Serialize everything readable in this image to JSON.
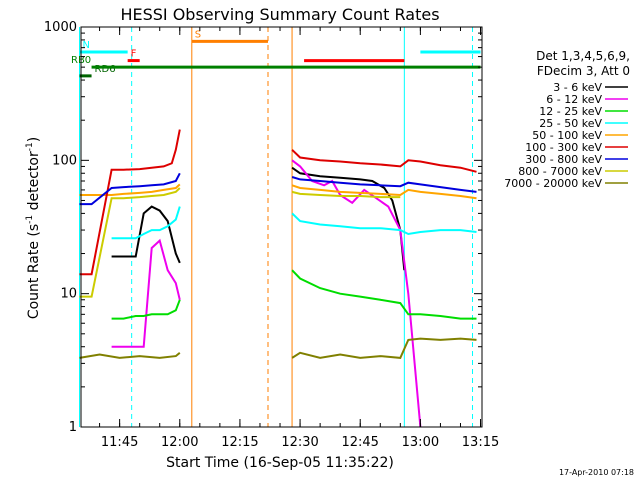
{
  "chart_data": {
    "type": "line",
    "title": "HESSI Observing Summary Count Rates",
    "xlabel": "Start Time (16-Sep-05 11:35:22)",
    "ylabel_main": "Count Rate (s",
    "ylabel_sup1": "-1",
    "ylabel_mid": " detector",
    "ylabel_sup2": "-1",
    "ylabel_end": ")",
    "y_scale": "log",
    "ylim": [
      1,
      1000
    ],
    "xlim": [
      "11:35:22",
      "13:15:22"
    ],
    "x_ticks": [
      "11:45",
      "12:00",
      "12:15",
      "12:30",
      "12:45",
      "13:00",
      "13:15"
    ],
    "y_ticks": [
      "1",
      "10",
      "100",
      "1000"
    ],
    "grid": false,
    "legend_header": [
      "Det 1,3,4,5,6,9,",
      "FDecim 3, Att 0"
    ],
    "legend_placement": "right",
    "series": [
      {
        "name": "3 - 6 keV",
        "color": "#000000",
        "segments": [
          {
            "x": [
              "11:43",
              "11:46",
              "11:49",
              "11:51",
              "11:53",
              "11:55",
              "11:57",
              "11:59",
              "12:00"
            ],
            "y": [
              19,
              19,
              19,
              40,
              45,
              42,
              35,
              20,
              17
            ]
          },
          {
            "x": [
              "12:28",
              "12:30",
              "12:35",
              "12:40",
              "12:45",
              "12:48",
              "12:51",
              "12:53",
              "12:55",
              "12:56"
            ],
            "y": [
              88,
              80,
              76,
              74,
              72,
              70,
              62,
              50,
              30,
              15
            ]
          }
        ]
      },
      {
        "name": "6 - 12 keV",
        "color": "#ee00ee",
        "segments": [
          {
            "x": [
              "11:43",
              "11:48",
              "11:51",
              "11:53",
              "11:55",
              "11:57",
              "11:59",
              "12:00"
            ],
            "y": [
              4,
              4,
              4,
              22,
              25,
              15,
              12,
              9
            ]
          },
          {
            "x": [
              "12:28",
              "12:30",
              "12:33",
              "12:36",
              "12:38",
              "12:40",
              "12:43",
              "12:46",
              "12:49",
              "12:52",
              "12:55",
              "12:57",
              "13:00"
            ],
            "y": [
              100,
              90,
              70,
              65,
              70,
              55,
              48,
              60,
              52,
              45,
              30,
              10,
              1
            ]
          }
        ]
      },
      {
        "name": "12 - 25 keV",
        "color": "#00dd00",
        "segments": [
          {
            "x": [
              "11:43",
              "11:46",
              "11:49",
              "11:51",
              "11:53",
              "11:55",
              "11:57",
              "11:59",
              "12:00"
            ],
            "y": [
              6.5,
              6.5,
              6.8,
              6.8,
              7.0,
              7.0,
              7.0,
              7.5,
              9
            ]
          },
          {
            "x": [
              "12:28",
              "12:30",
              "12:35",
              "12:40",
              "12:45",
              "12:50",
              "12:55",
              "12:57",
              "13:00",
              "13:05",
              "13:10",
              "13:14"
            ],
            "y": [
              15,
              13,
              11,
              10,
              9.5,
              9.0,
              8.5,
              7.0,
              7.0,
              6.8,
              6.5,
              6.5
            ]
          }
        ]
      },
      {
        "name": "25 - 50 keV",
        "color": "#00ffff",
        "segments": [
          {
            "x": [
              "11:43",
              "11:46",
              "11:49",
              "11:51",
              "11:53",
              "11:55",
              "11:57",
              "11:59",
              "12:00"
            ],
            "y": [
              26,
              26,
              26,
              28,
              30,
              30,
              32,
              36,
              45
            ]
          },
          {
            "x": [
              "12:28",
              "12:30",
              "12:35",
              "12:40",
              "12:45",
              "12:50",
              "12:55",
              "12:57",
              "13:00",
              "13:05",
              "13:10",
              "13:14"
            ],
            "y": [
              40,
              35,
              33,
              32,
              31,
              31,
              30,
              28,
              29,
              30,
              30,
              29
            ]
          }
        ]
      },
      {
        "name": "50 - 100 keV",
        "color": "#ffa500",
        "segments": [
          {
            "x": [
              "11:35",
              "11:43",
              "11:46",
              "11:50",
              "11:53",
              "11:56",
              "11:59",
              "12:00"
            ],
            "y": [
              55,
              55,
              56,
              57,
              58,
              60,
              62,
              66
            ]
          },
          {
            "x": [
              "12:28",
              "12:30",
              "12:35",
              "12:40",
              "12:45",
              "12:50",
              "12:55",
              "12:57",
              "13:00",
              "13:05",
              "13:10",
              "13:14"
            ],
            "y": [
              65,
              62,
              60,
              58,
              57,
              56,
              55,
              60,
              58,
              56,
              54,
              52
            ]
          }
        ]
      },
      {
        "name": "100 - 300 keV",
        "color": "#dd0000",
        "segments": [
          {
            "x": [
              "11:35",
              "11:37",
              "11:38",
              "11:43",
              "11:46",
              "11:50",
              "11:53",
              "11:56",
              "11:58",
              "11:59",
              "12:00"
            ],
            "y": [
              14,
              14,
              14,
              85,
              85,
              86,
              88,
              90,
              95,
              120,
              170
            ]
          },
          {
            "x": [
              "12:28",
              "12:30",
              "12:35",
              "12:40",
              "12:45",
              "12:50",
              "12:55",
              "12:57",
              "13:00",
              "13:05",
              "13:10",
              "13:14"
            ],
            "y": [
              120,
              105,
              100,
              98,
              95,
              93,
              90,
              100,
              98,
              92,
              88,
              82
            ]
          }
        ]
      },
      {
        "name": "300 - 800 keV",
        "color": "#0000dd",
        "segments": [
          {
            "x": [
              "11:35",
              "11:37",
              "11:38",
              "11:43",
              "11:46",
              "11:50",
              "11:53",
              "11:56",
              "11:59",
              "12:00"
            ],
            "y": [
              47,
              47,
              47,
              62,
              63,
              64,
              65,
              66,
              70,
              80
            ]
          },
          {
            "x": [
              "12:28",
              "12:30",
              "12:35",
              "12:40",
              "12:45",
              "12:50",
              "12:55",
              "12:57",
              "13:00",
              "13:05",
              "13:10",
              "13:14"
            ],
            "y": [
              75,
              72,
              70,
              68,
              66,
              65,
              64,
              68,
              66,
              63,
              60,
              58
            ]
          }
        ]
      },
      {
        "name": "800 - 7000 keV",
        "color": "#cccc00",
        "segments": [
          {
            "x": [
              "11:35",
              "11:37",
              "11:38",
              "11:43",
              "11:46",
              "11:50",
              "11:53",
              "11:56",
              "11:59",
              "12:00"
            ],
            "y": [
              9.5,
              9.5,
              9.5,
              52,
              52,
              53,
              54,
              55,
              58,
              62
            ]
          },
          {
            "x": [
              "12:28",
              "12:30",
              "12:35",
              "12:40",
              "12:45",
              "12:50",
              "12:55"
            ],
            "y": [
              58,
              56,
              55,
              54,
              54,
              53,
              53
            ]
          }
        ]
      },
      {
        "name": "7000 - 20000 keV",
        "color": "#808000",
        "segments": [
          {
            "x": [
              "11:35",
              "11:40",
              "11:45",
              "11:50",
              "11:55",
              "11:59",
              "12:00"
            ],
            "y": [
              3.3,
              3.5,
              3.3,
              3.4,
              3.3,
              3.4,
              3.6
            ]
          },
          {
            "x": [
              "12:28",
              "12:30",
              "12:35",
              "12:40",
              "12:45",
              "12:50",
              "12:55",
              "12:57",
              "13:00",
              "13:05",
              "13:10",
              "13:14"
            ],
            "y": [
              3.3,
              3.6,
              3.3,
              3.5,
              3.3,
              3.4,
              3.3,
              4.5,
              4.6,
              4.5,
              4.6,
              4.5
            ]
          }
        ]
      }
    ],
    "flag_bars": [
      {
        "label": "N",
        "color": "#00ffff",
        "ranges": [
          [
            "11:35",
            "11:47"
          ],
          [
            "13:00",
            "13:15"
          ]
        ],
        "y": 650
      },
      {
        "label": "F",
        "color": "#ff0000",
        "ranges": [
          [
            "11:47",
            "11:50"
          ]
        ],
        "y": 560
      },
      {
        "label": "S",
        "color": "#ff7f00",
        "ranges": [
          [
            "12:03",
            "12:22"
          ]
        ],
        "y": 780
      },
      {
        "label": "",
        "color": "#ff0000",
        "ranges": [
          [
            "12:31",
            "12:56"
          ]
        ],
        "y": 560
      },
      {
        "label": "RD6",
        "color": "#006400",
        "ranges": [
          [
            "11:35",
            "11:38"
          ]
        ],
        "y": 430
      },
      {
        "label": "RB0",
        "color": "#008000",
        "ranges": [
          [
            "11:38",
            "13:15"
          ]
        ],
        "y": 500
      }
    ],
    "vertical_lines": [
      {
        "x": "11:35",
        "color": "#00ffff",
        "style": "solid"
      },
      {
        "x": "11:48",
        "color": "#00ffff",
        "style": "dashed"
      },
      {
        "x": "12:03",
        "color": "#ff7f00",
        "style": "solid"
      },
      {
        "x": "12:22",
        "color": "#ff7f00",
        "style": "dashed"
      },
      {
        "x": "12:28",
        "color": "#ff7f00",
        "style": "solid"
      },
      {
        "x": "12:56",
        "color": "#00ffff",
        "style": "solid"
      },
      {
        "x": "13:13",
        "color": "#00ffff",
        "style": "dashed"
      }
    ],
    "footer_timestamp": "17-Apr-2010 07:18"
  }
}
